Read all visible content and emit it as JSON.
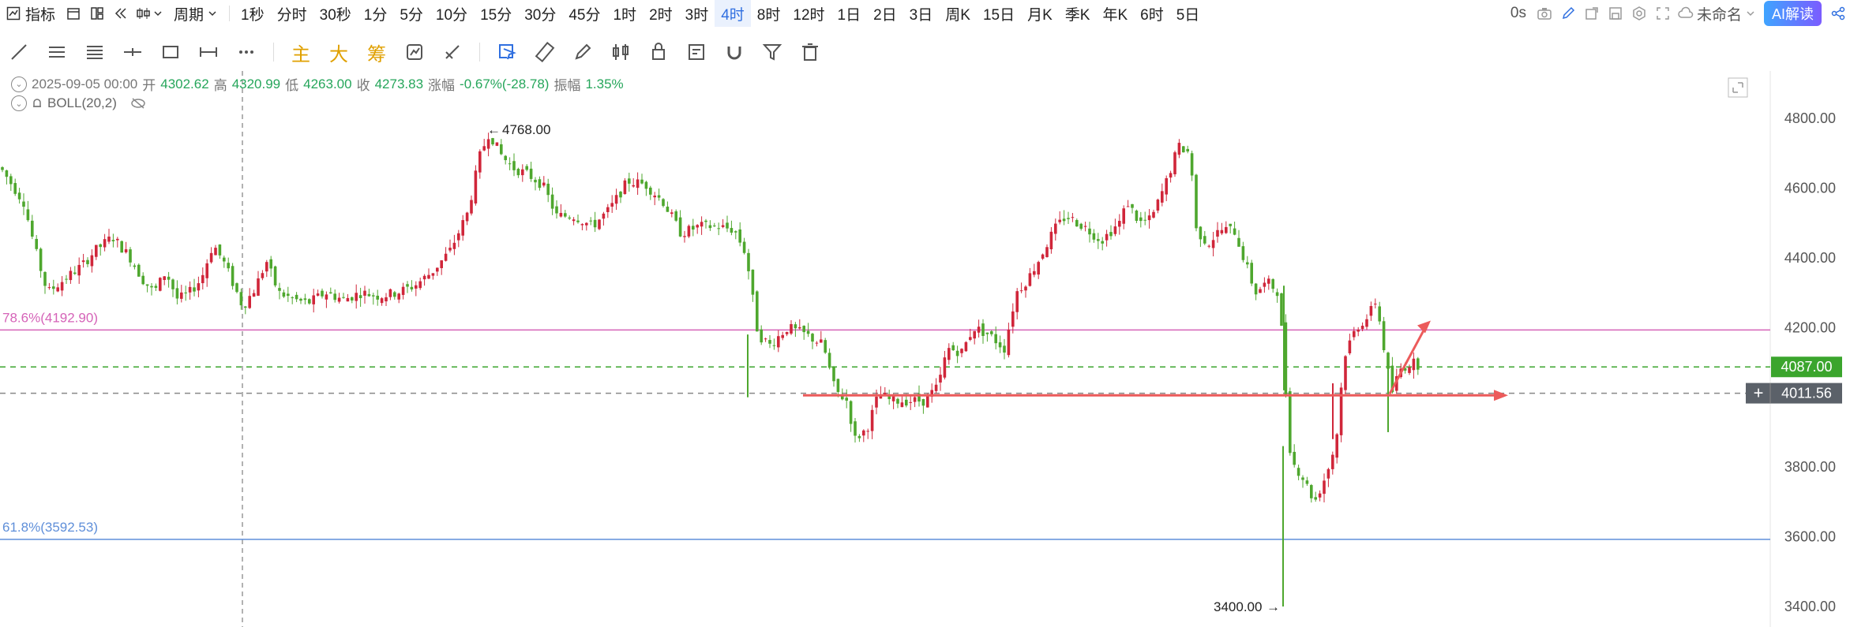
{
  "toolbar": {
    "indicator_label": "指标",
    "period_label": "周期",
    "periods": [
      "1秒",
      "分时",
      "30秒",
      "1分",
      "5分",
      "10分",
      "15分",
      "30分",
      "45分",
      "1时",
      "2时",
      "3时",
      "4时",
      "8时",
      "12时",
      "1日",
      "2日",
      "3日",
      "周K",
      "15日",
      "月K",
      "季K",
      "年K",
      "6时",
      "5日"
    ],
    "active_period": "4时",
    "latency": "0s",
    "layout_name": "未命名",
    "ai_button": "AI解读"
  },
  "draw_tools": {
    "text_buttons": [
      "主",
      "大",
      "筹"
    ]
  },
  "ohlc": {
    "datetime": "2025-09-05 00:00",
    "open_label": "开",
    "open": "4302.62",
    "high_label": "高",
    "high": "4320.99",
    "low_label": "低",
    "low": "4263.00",
    "close_label": "收",
    "close": "4273.83",
    "change_label": "涨幅",
    "change": "-0.67%(-28.78)",
    "amplitude_label": "振幅",
    "amplitude": "1.35%"
  },
  "indicator": {
    "name": "BOLL(20,2)"
  },
  "colors": {
    "up": "#d0263a",
    "down": "#4ea72e",
    "fib_upper": "#d563b8",
    "fib_lower": "#5f8fd9",
    "arrow": "#ec5b5b",
    "price_tag_green": "#3ba52d",
    "price_tag_dark": "#5b6169",
    "accent": "#2f6fe0"
  },
  "chart_data": {
    "type": "candlestick",
    "ylim": [
      3390,
      4860
    ],
    "y_ticks": [
      "4800.00",
      "4600.00",
      "4400.00",
      "4200.00",
      "4000.00",
      "3800.00",
      "3600.00",
      "3400.00"
    ],
    "y_tick_values": [
      4800,
      4600,
      4400,
      4200,
      4000,
      3800,
      3600,
      3400
    ],
    "close_path": [
      [
        0,
        4660
      ],
      [
        10,
        4610
      ],
      [
        20,
        4560
      ],
      [
        30,
        4420
      ],
      [
        40,
        4300
      ],
      [
        55,
        4340
      ],
      [
        70,
        4380
      ],
      [
        80,
        4420
      ],
      [
        95,
        4460
      ],
      [
        110,
        4400
      ],
      [
        120,
        4340
      ],
      [
        130,
        4300
      ],
      [
        140,
        4360
      ],
      [
        150,
        4280
      ],
      [
        160,
        4300
      ],
      [
        170,
        4340
      ],
      [
        180,
        4440
      ],
      [
        190,
        4380
      ],
      [
        205,
        4260
      ],
      [
        215,
        4310
      ],
      [
        225,
        4390
      ],
      [
        235,
        4300
      ],
      [
        248,
        4280
      ],
      [
        260,
        4270
      ],
      [
        275,
        4300
      ],
      [
        290,
        4280
      ],
      [
        305,
        4300
      ],
      [
        320,
        4290
      ],
      [
        335,
        4300
      ],
      [
        350,
        4320
      ],
      [
        365,
        4360
      ],
      [
        380,
        4420
      ],
      [
        395,
        4530
      ],
      [
        405,
        4690
      ],
      [
        413,
        4760
      ],
      [
        422,
        4700
      ],
      [
        432,
        4660
      ],
      [
        445,
        4640
      ],
      [
        458,
        4610
      ],
      [
        470,
        4520
      ],
      [
        485,
        4520
      ],
      [
        500,
        4490
      ],
      [
        515,
        4540
      ],
      [
        530,
        4620
      ],
      [
        545,
        4610
      ],
      [
        560,
        4560
      ],
      [
        575,
        4470
      ],
      [
        590,
        4490
      ],
      [
        605,
        4490
      ],
      [
        620,
        4480
      ],
      [
        630,
        4410
      ],
      [
        640,
        4180
      ],
      [
        650,
        4150
      ],
      [
        665,
        4200
      ],
      [
        680,
        4180
      ],
      [
        695,
        4150
      ],
      [
        705,
        4020
      ],
      [
        715,
        3990
      ],
      [
        722,
        3880
      ],
      [
        732,
        3910
      ],
      [
        742,
        4010
      ],
      [
        752,
        3990
      ],
      [
        765,
        3990
      ],
      [
        780,
        3990
      ],
      [
        792,
        4030
      ],
      [
        800,
        4140
      ],
      [
        812,
        4130
      ],
      [
        822,
        4200
      ],
      [
        835,
        4180
      ],
      [
        848,
        4140
      ],
      [
        858,
        4300
      ],
      [
        868,
        4340
      ],
      [
        878,
        4400
      ],
      [
        890,
        4480
      ],
      [
        900,
        4520
      ],
      [
        915,
        4490
      ],
      [
        930,
        4450
      ],
      [
        945,
        4500
      ],
      [
        952,
        4560
      ],
      [
        962,
        4500
      ],
      [
        972,
        4510
      ],
      [
        985,
        4620
      ],
      [
        995,
        4720
      ],
      [
        1005,
        4700
      ],
      [
        1010,
        4480
      ],
      [
        1020,
        4440
      ],
      [
        1030,
        4480
      ],
      [
        1042,
        4480
      ],
      [
        1050,
        4400
      ],
      [
        1060,
        4300
      ],
      [
        1070,
        4330
      ],
      [
        1080,
        4300
      ],
      [
        1085,
        4040
      ],
      [
        1090,
        3820
      ],
      [
        1100,
        3770
      ],
      [
        1110,
        3700
      ],
      [
        1120,
        3780
      ],
      [
        1128,
        3870
      ],
      [
        1135,
        4120
      ],
      [
        1145,
        4200
      ],
      [
        1155,
        4230
      ],
      [
        1162,
        4280
      ],
      [
        1168,
        4150
      ],
      [
        1175,
        4010
      ],
      [
        1182,
        4080
      ],
      [
        1192,
        4100
      ],
      [
        1200,
        4090
      ]
    ],
    "annotations": [
      {
        "label": "4768.00",
        "value": 4768
      },
      {
        "label": "3400.00",
        "value": 3400
      }
    ],
    "fibonacci": [
      {
        "label": "78.6%(4192.90)",
        "value": 4192.9
      },
      {
        "label": "61.8%(3592.53)",
        "value": 3592.53
      }
    ],
    "horizontal_ray": {
      "value": 4010
    },
    "trend_arrow": {
      "from": 4010,
      "to": 4220
    },
    "dashed_lines": [
      4087,
      4011.56
    ],
    "price_tags": [
      {
        "label": "4087.00",
        "value": 4087
      },
      {
        "label": "4011.56",
        "value": 4011.56
      }
    ]
  }
}
